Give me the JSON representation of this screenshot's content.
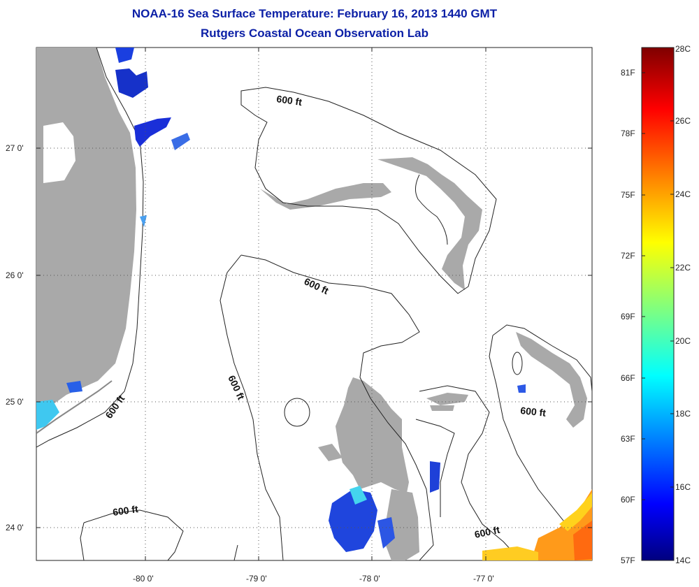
{
  "header": {
    "title": "NOAA-16 Sea Surface Temperature:  February 16, 2013 1440 GMT",
    "subtitle": "Rutgers Coastal Ocean Observation Lab"
  },
  "map": {
    "x_ticks": [
      "-80 0'",
      "-79 0'",
      "-78 0'",
      "-77 0'"
    ],
    "y_ticks": [
      "27 0'",
      "26 0'",
      "25 0'",
      "24 0'"
    ],
    "contour_label": "600 ft",
    "land_color": "#a9a9a9",
    "cloud_mask_color": "#ffffff"
  },
  "colorbar": {
    "fahrenheit_labels": [
      "81F",
      "78F",
      "75F",
      "72F",
      "69F",
      "66F",
      "63F",
      "60F",
      "57F"
    ],
    "celsius_labels": [
      "28C",
      "26C",
      "24C",
      "22C",
      "20C",
      "18C",
      "16C",
      "14C"
    ],
    "range_c": [
      14,
      28
    ],
    "colormap": "jet"
  }
}
